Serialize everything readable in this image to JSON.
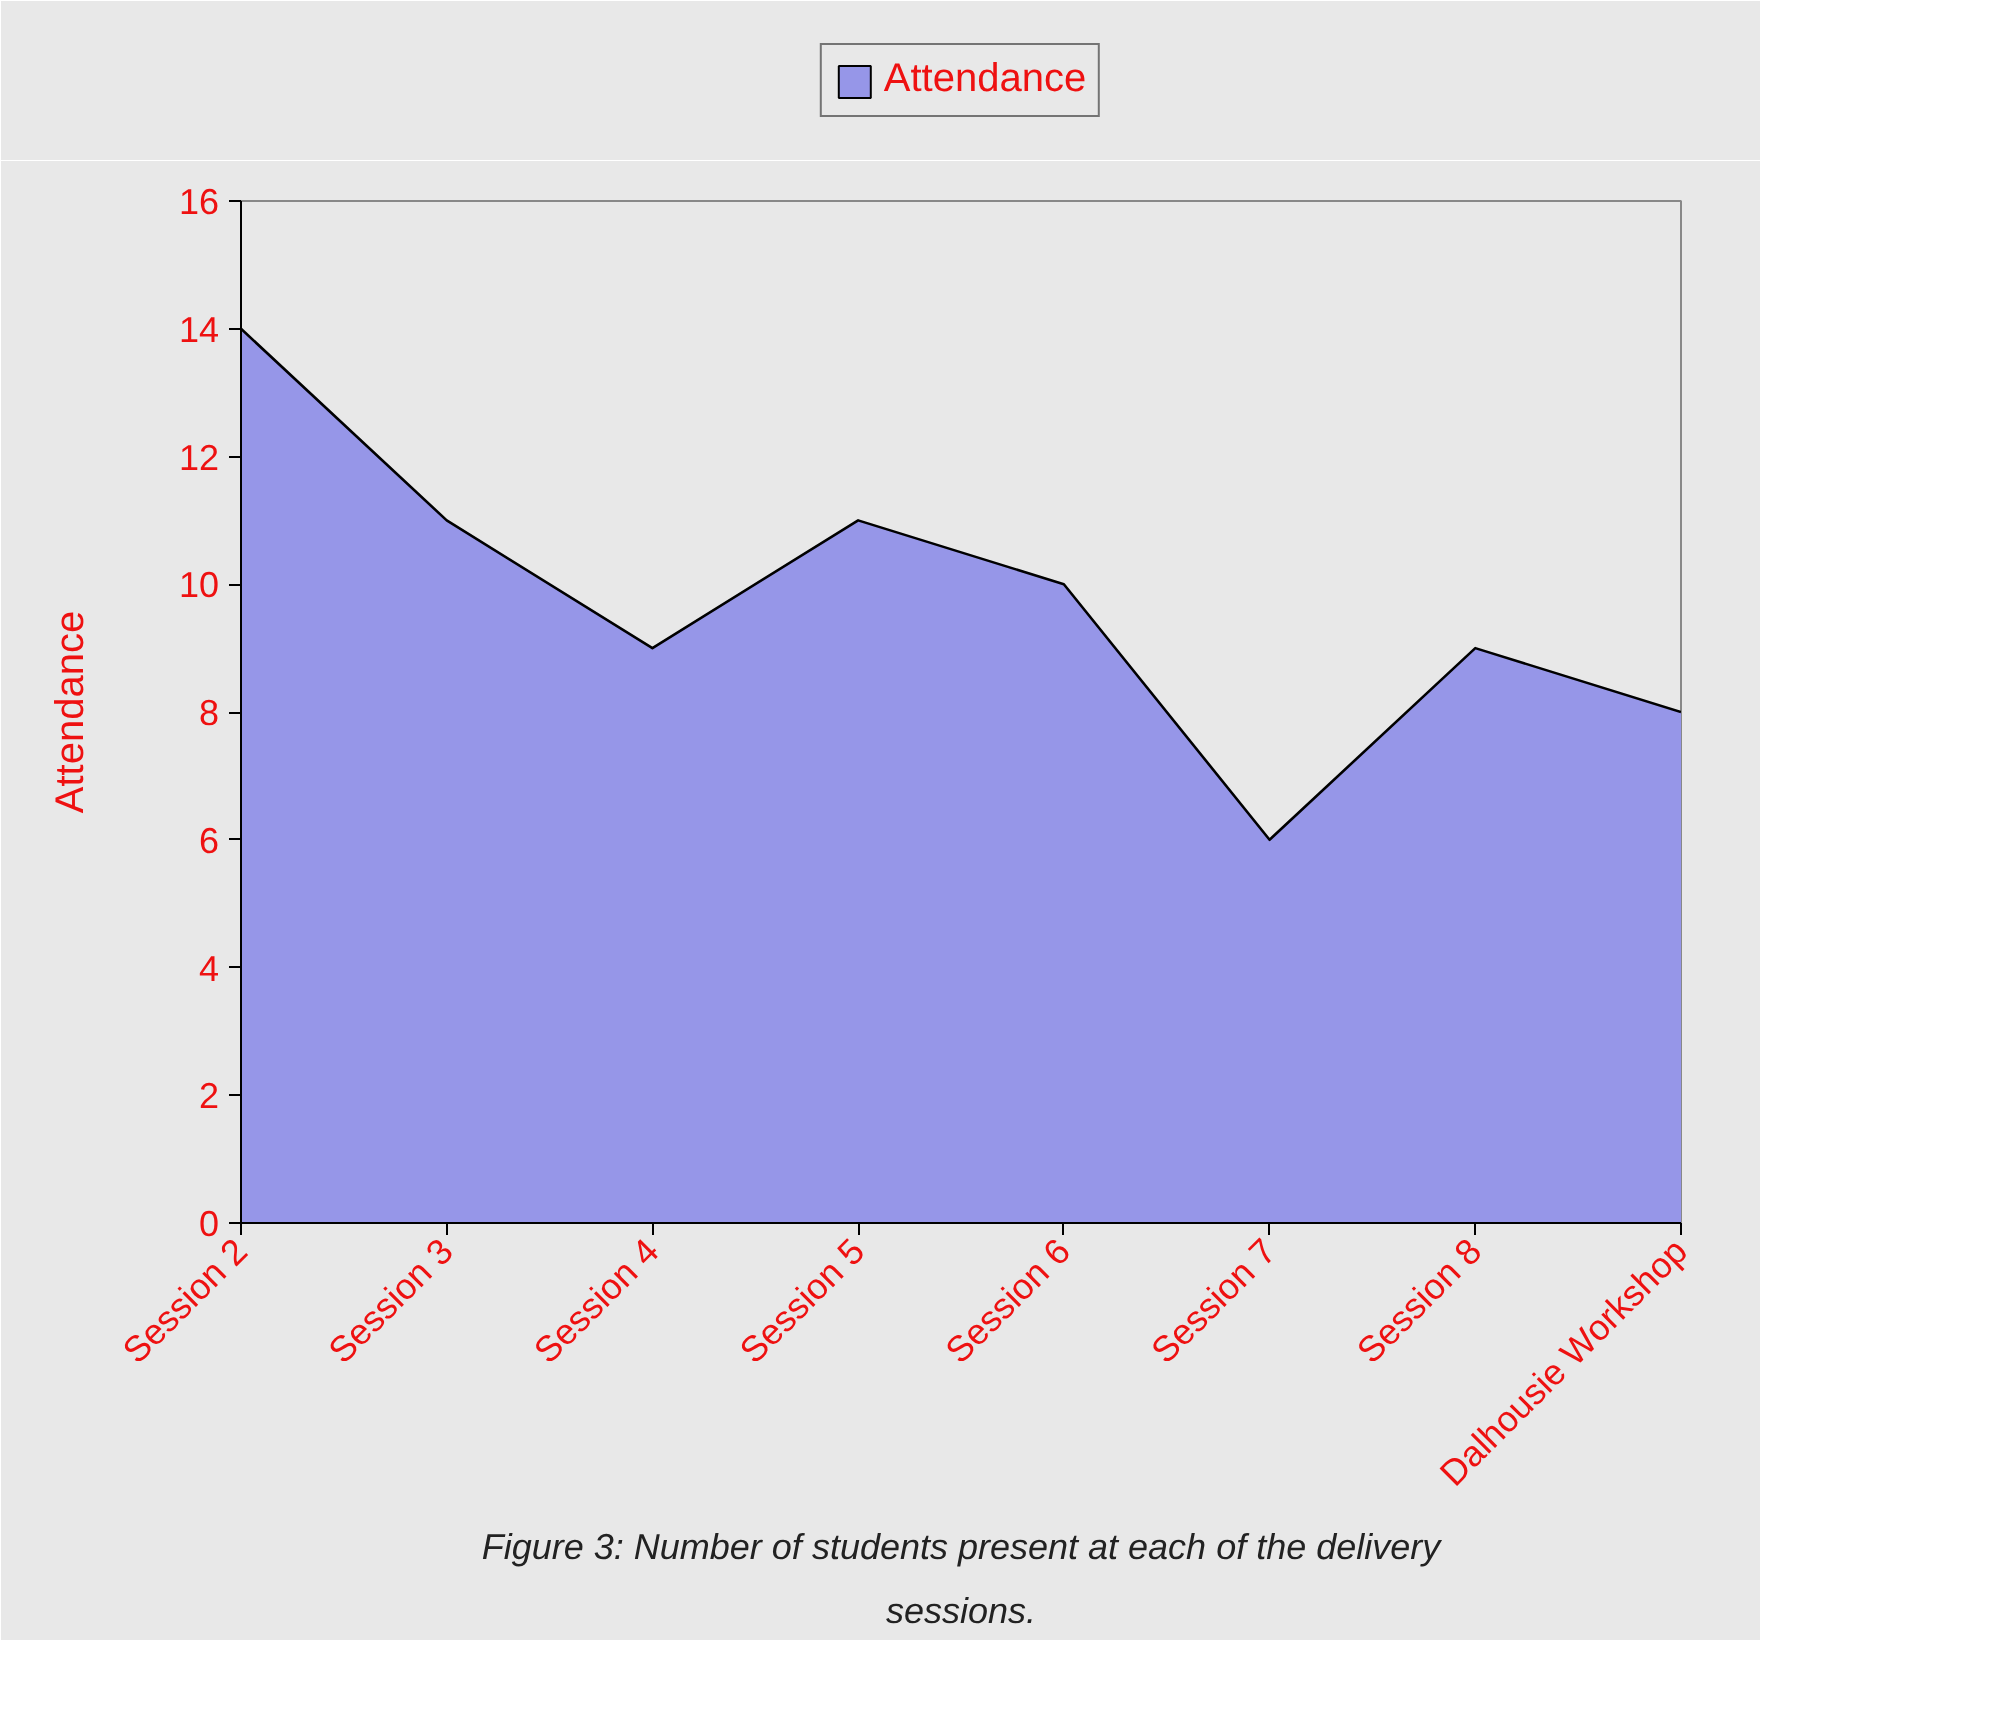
{
  "chart_data": {
    "type": "area",
    "categories": [
      "Session 2",
      "Session 3",
      "Session 4",
      "Session 5",
      "Session 6",
      "Session 7",
      "Session 8",
      "Dalhousie Workshop"
    ],
    "series": [
      {
        "name": "Attendance",
        "color": "#9696e8",
        "values": [
          14,
          11,
          9,
          11,
          10,
          6,
          9,
          8
        ]
      }
    ],
    "ylabel": "Attendance",
    "ylim": [
      0,
      16
    ],
    "yticks": [
      0,
      2,
      4,
      6,
      8,
      10,
      12,
      14,
      16
    ],
    "grid": false,
    "legend": "top",
    "annotations": [
      "Figure 3: Number of students present at each of the delivery sessions."
    ]
  }
}
